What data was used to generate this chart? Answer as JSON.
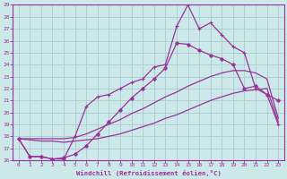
{
  "xlabel": "Windchill (Refroidissement éolien,°C)",
  "bg_color": "#cce8e8",
  "line_color": "#993399",
  "grid_color": "#aacccc",
  "xlim": [
    -0.5,
    23.5
  ],
  "ylim": [
    16,
    29
  ],
  "xticks": [
    0,
    1,
    2,
    3,
    4,
    5,
    6,
    7,
    8,
    9,
    10,
    11,
    12,
    13,
    14,
    15,
    16,
    17,
    18,
    19,
    20,
    21,
    22,
    23
  ],
  "yticks": [
    16,
    17,
    18,
    19,
    20,
    21,
    22,
    23,
    24,
    25,
    26,
    27,
    28,
    29
  ],
  "line_smooth_low_x": [
    0,
    1,
    2,
    3,
    4,
    5,
    6,
    7,
    8,
    9,
    10,
    11,
    12,
    13,
    14,
    15,
    16,
    17,
    18,
    19,
    20,
    21,
    22,
    23
  ],
  "line_smooth_low_y": [
    17.8,
    17.7,
    17.6,
    17.6,
    17.5,
    17.6,
    17.7,
    17.8,
    18.0,
    18.2,
    18.5,
    18.8,
    19.1,
    19.5,
    19.8,
    20.2,
    20.6,
    21.0,
    21.3,
    21.6,
    21.8,
    21.9,
    22.0,
    19.2
  ],
  "line_smooth_high_x": [
    0,
    1,
    2,
    3,
    4,
    5,
    6,
    7,
    8,
    9,
    10,
    11,
    12,
    13,
    14,
    15,
    16,
    17,
    18,
    19,
    20,
    21,
    22,
    23
  ],
  "line_smooth_high_y": [
    17.8,
    17.8,
    17.8,
    17.8,
    17.8,
    17.9,
    18.2,
    18.6,
    19.0,
    19.4,
    19.9,
    20.3,
    20.8,
    21.3,
    21.7,
    22.2,
    22.6,
    23.0,
    23.3,
    23.5,
    23.5,
    23.3,
    22.8,
    19.5
  ],
  "line_marker1_x": [
    0,
    1,
    2,
    3,
    4,
    5,
    6,
    7,
    8,
    9,
    10,
    11,
    12,
    13,
    14,
    15,
    16,
    17,
    18,
    19,
    20,
    21,
    22,
    23
  ],
  "line_marker1_y": [
    17.8,
    16.3,
    16.3,
    16.1,
    16.2,
    16.5,
    17.2,
    18.2,
    19.2,
    20.2,
    21.2,
    22.0,
    22.8,
    23.7,
    25.8,
    25.7,
    25.2,
    24.8,
    24.5,
    24.0,
    22.0,
    22.2,
    21.5,
    21.0
  ],
  "line_marker2_x": [
    0,
    1,
    2,
    3,
    4,
    5,
    6,
    7,
    8,
    9,
    10,
    11,
    12,
    13,
    14,
    15,
    16,
    17,
    18,
    19,
    20,
    21,
    22,
    23
  ],
  "line_marker2_y": [
    17.8,
    16.3,
    16.3,
    16.1,
    16.1,
    18.0,
    20.5,
    21.3,
    21.5,
    22.0,
    22.5,
    22.8,
    23.8,
    24.0,
    27.2,
    29.0,
    27.0,
    27.5,
    26.5,
    25.5,
    25.0,
    22.0,
    21.5,
    19.0
  ]
}
